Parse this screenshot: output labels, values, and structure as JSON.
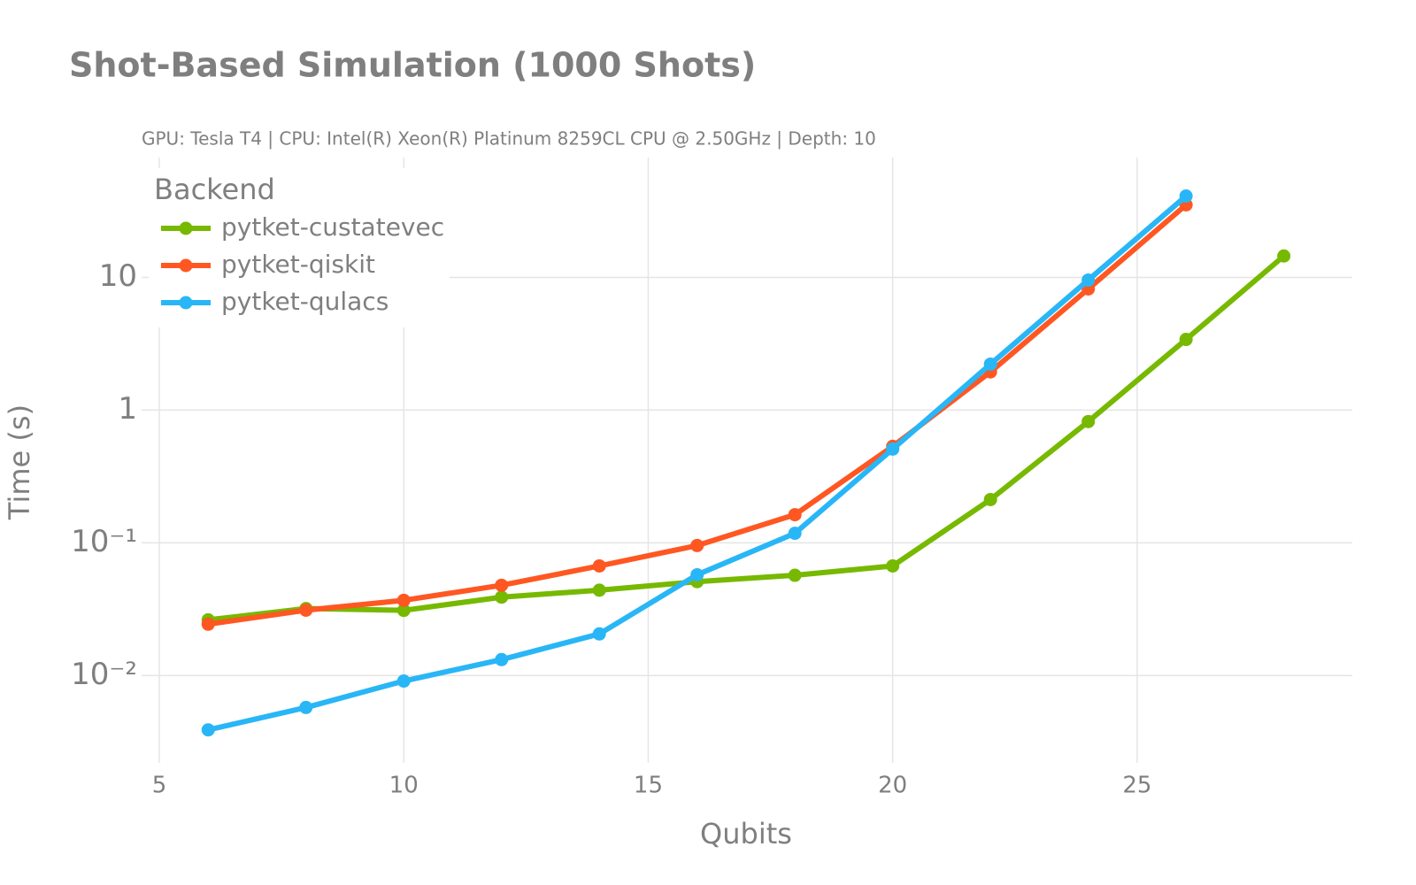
{
  "chart_data": {
    "type": "line",
    "title": "Shot-Based Simulation (1000 Shots)",
    "subtitle": "GPU: Tesla T4 | CPU: Intel(R) Xeon(R) Platinum 8259CL CPU @ 2.50GHz | Depth: 10",
    "x_label": "Qubits",
    "y_label": "Time (s)",
    "legend_title": "Backend",
    "legend_position": "top-left",
    "log_y": true,
    "grid": true,
    "xlim": [
      5,
      29.4
    ],
    "xticks": [
      5,
      10,
      15,
      20,
      25
    ],
    "ylim": [
      0.0022,
      80
    ],
    "yticks": [
      {
        "value": 0.01,
        "label": "10⁻²"
      },
      {
        "value": 0.1,
        "label": "10⁻¹"
      },
      1,
      10
    ],
    "series": [
      {
        "name": "pytket-custatevec",
        "color": "#76b900",
        "x": [
          6,
          8,
          10,
          12,
          14,
          16,
          18,
          20,
          22,
          24,
          26,
          28
        ],
        "values": [
          0.0263,
          0.032,
          0.031,
          0.039,
          0.044,
          0.051,
          0.057,
          0.067,
          0.212,
          0.82,
          3.41,
          14.5
        ]
      },
      {
        "name": "pytket-qiskit",
        "color": "#ff5722",
        "x": [
          6,
          8,
          10,
          12,
          14,
          16,
          18,
          20,
          22,
          24,
          26
        ],
        "values": [
          0.0244,
          0.0311,
          0.0369,
          0.0479,
          0.067,
          0.0955,
          0.163,
          0.533,
          1.94,
          8.19,
          35.2
        ]
      },
      {
        "name": "pytket-qulacs",
        "color": "#29b6f6",
        "x": [
          6,
          8,
          10,
          12,
          14,
          16,
          18,
          20,
          22,
          24,
          26
        ],
        "values": [
          0.0039,
          0.00575,
          0.0091,
          0.0132,
          0.0206,
          0.0575,
          0.118,
          0.509,
          2.22,
          9.55,
          41
        ]
      }
    ]
  }
}
